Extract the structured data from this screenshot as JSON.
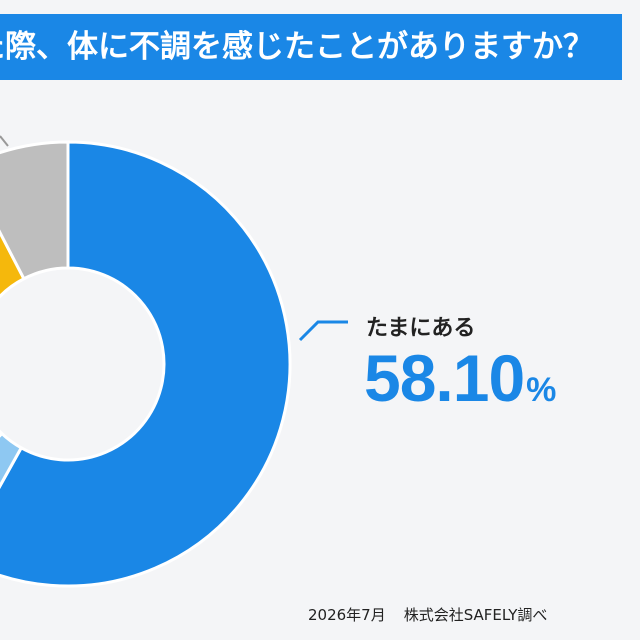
{
  "header": {
    "title": "た際、体に不調を感じたことがありますか？"
  },
  "chart_data": {
    "type": "pie",
    "donut": true,
    "slices": [
      {
        "label": "たまにある",
        "value": 58.1,
        "color": "#1a87e6"
      },
      {
        "label": "",
        "value": 4.0,
        "color": "#8ec8f2"
      },
      {
        "label": "",
        "value": 30.3,
        "color": "#f5b80c"
      },
      {
        "label": "",
        "value": 7.6,
        "color": "#bebebe"
      }
    ],
    "callout": {
      "label": "たまにある",
      "value": "58.10",
      "unit": "%"
    }
  },
  "footer": {
    "date": "2026年7月",
    "source": "株式会社SAFELY調べ"
  }
}
